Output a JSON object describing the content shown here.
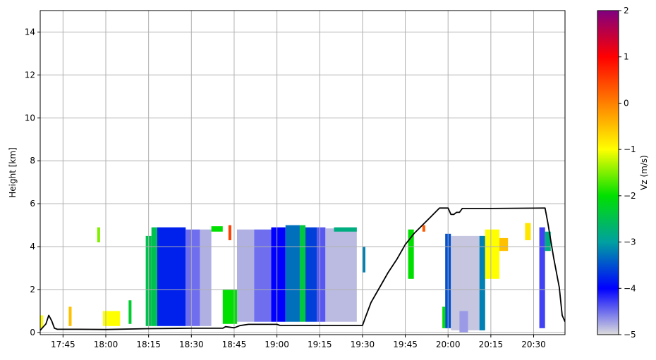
{
  "chart_data": {
    "type": "heatmap",
    "title": "",
    "xlabel": "",
    "ylabel": "Height [km]",
    "ylim": [
      -0.1,
      15
    ],
    "xlim": [
      "17:37",
      "20:41"
    ],
    "grid": true,
    "x_ticks": [
      "17:45",
      "18:00",
      "18:15",
      "18:30",
      "18:45",
      "19:00",
      "19:15",
      "19:30",
      "19:45",
      "20:00",
      "20:15",
      "20:30"
    ],
    "y_ticks": [
      0,
      2,
      4,
      6,
      8,
      10,
      12,
      14
    ],
    "colorbar": {
      "label": "Vz (m/s)",
      "range": [
        -5,
        2
      ],
      "ticks": [
        -5,
        -4,
        -3,
        -2,
        -1,
        0,
        1,
        2
      ],
      "colors": [
        "#dcdcdc",
        "#0000ff",
        "#00a0a0",
        "#00e000",
        "#ffff00",
        "#ff8000",
        "#ff0000",
        "#800080"
      ]
    },
    "line_series": {
      "color": "#000000",
      "points": [
        [
          "17:37",
          0.1
        ],
        [
          "17:38",
          0.25
        ],
        [
          "17:39",
          0.4
        ],
        [
          "17:40",
          0.8
        ],
        [
          "17:41",
          0.55
        ],
        [
          "17:42",
          0.2
        ],
        [
          "17:43",
          0.15
        ],
        [
          "17:50",
          0.15
        ],
        [
          "18:00",
          0.14
        ],
        [
          "18:15",
          0.18
        ],
        [
          "18:30",
          0.2
        ],
        [
          "18:41",
          0.2
        ],
        [
          "18:42",
          0.27
        ],
        [
          "18:45",
          0.22
        ],
        [
          "18:47",
          0.32
        ],
        [
          "18:50",
          0.38
        ],
        [
          "19:00",
          0.38
        ],
        [
          "19:01",
          0.33
        ],
        [
          "19:15",
          0.33
        ],
        [
          "19:30",
          0.33
        ],
        [
          "19:31",
          0.7
        ],
        [
          "19:33",
          1.4
        ],
        [
          "19:36",
          2.1
        ],
        [
          "19:39",
          2.8
        ],
        [
          "19:42",
          3.4
        ],
        [
          "19:45",
          4.1
        ],
        [
          "19:48",
          4.6
        ],
        [
          "19:51",
          5.0
        ],
        [
          "19:54",
          5.4
        ],
        [
          "19:57",
          5.8
        ],
        [
          "20:00",
          5.8
        ],
        [
          "20:01",
          5.5
        ],
        [
          "20:02",
          5.5
        ],
        [
          "20:03",
          5.6
        ],
        [
          "20:04",
          5.6
        ],
        [
          "20:05",
          5.78
        ],
        [
          "20:15",
          5.78
        ],
        [
          "20:34",
          5.8
        ],
        [
          "20:35",
          5.1
        ],
        [
          "20:37",
          3.5
        ],
        [
          "20:39",
          2.1
        ],
        [
          "20:40",
          0.8
        ],
        [
          "20:41",
          0.5
        ]
      ]
    },
    "field_blocks": [
      {
        "t": [
          "17:37",
          "17:38"
        ],
        "bottom": 0.2,
        "top": 0.8,
        "v": -1
      },
      {
        "t": [
          "17:47",
          "17:48"
        ],
        "bottom": 0.3,
        "top": 1.2,
        "v": -0.5
      },
      {
        "t": [
          "17:57",
          "17:58"
        ],
        "bottom": 4.2,
        "top": 4.9,
        "v": -1.5
      },
      {
        "t": [
          "17:59",
          "18:05"
        ],
        "bottom": 0.3,
        "top": 1.0,
        "v": -1
      },
      {
        "t": [
          "18:08",
          "18:09"
        ],
        "bottom": 0.4,
        "top": 1.5,
        "v": -2.3
      },
      {
        "t": [
          "18:14",
          "18:16"
        ],
        "bottom": 0.3,
        "top": 4.5,
        "v": -2.5
      },
      {
        "t": [
          "18:16",
          "18:18"
        ],
        "bottom": 0.3,
        "top": 4.9,
        "v": -2.5
      },
      {
        "t": [
          "18:18",
          "18:28"
        ],
        "bottom": 0.3,
        "top": 4.9,
        "v": -3.8
      },
      {
        "t": [
          "18:28",
          "18:33"
        ],
        "bottom": 0.3,
        "top": 4.8,
        "v": -4.5
      },
      {
        "t": [
          "18:33",
          "18:37"
        ],
        "bottom": 0.3,
        "top": 4.8,
        "v": -4.8
      },
      {
        "t": [
          "18:37",
          "18:41"
        ],
        "bottom": 4.7,
        "top": 4.95,
        "v": -2.0
      },
      {
        "t": [
          "18:41",
          "18:46"
        ],
        "bottom": 0.4,
        "top": 2.0,
        "v": -2.0
      },
      {
        "t": [
          "18:43",
          "18:44"
        ],
        "bottom": 4.3,
        "top": 5.0,
        "v": 0.5
      },
      {
        "t": [
          "18:46",
          "18:52"
        ],
        "bottom": 0.5,
        "top": 4.8,
        "v": -4.8
      },
      {
        "t": [
          "18:52",
          "18:58"
        ],
        "bottom": 0.5,
        "top": 4.8,
        "v": -4.5
      },
      {
        "t": [
          "18:58",
          "19:03"
        ],
        "bottom": 0.5,
        "top": 4.9,
        "v": -4.0
      },
      {
        "t": [
          "19:03",
          "19:08"
        ],
        "bottom": 0.5,
        "top": 5.0,
        "v": -3.3
      },
      {
        "t": [
          "19:08",
          "19:10"
        ],
        "bottom": 0.5,
        "top": 5.0,
        "v": -2.4
      },
      {
        "t": [
          "19:10",
          "19:14"
        ],
        "bottom": 0.5,
        "top": 4.9,
        "v": -3.6
      },
      {
        "t": [
          "19:14",
          "19:17"
        ],
        "bottom": 0.5,
        "top": 4.9,
        "v": -4.4
      },
      {
        "t": [
          "19:17",
          "19:28"
        ],
        "bottom": 0.5,
        "top": 4.85,
        "v": -4.85
      },
      {
        "t": [
          "19:20",
          "19:28"
        ],
        "bottom": 4.7,
        "top": 4.9,
        "v": -2.8
      },
      {
        "t": [
          "19:30",
          "19:31"
        ],
        "bottom": 2.8,
        "top": 4.0,
        "v": -3.2
      },
      {
        "t": [
          "19:46",
          "19:48"
        ],
        "bottom": 2.5,
        "top": 4.8,
        "v": -2.0
      },
      {
        "t": [
          "19:51",
          "19:52"
        ],
        "bottom": 4.7,
        "top": 5.0,
        "v": 0.3
      },
      {
        "t": [
          "19:58",
          "19:59"
        ],
        "bottom": 0.2,
        "top": 1.2,
        "v": -2.0
      },
      {
        "t": [
          "19:59",
          "20:01"
        ],
        "bottom": 0.2,
        "top": 4.6,
        "v": -3.5
      },
      {
        "t": [
          "20:01",
          "20:11"
        ],
        "bottom": 0.1,
        "top": 4.5,
        "v": -4.9
      },
      {
        "t": [
          "20:04",
          "20:07"
        ],
        "bottom": 0.0,
        "top": 1.0,
        "v": -4.7
      },
      {
        "t": [
          "20:11",
          "20:13"
        ],
        "bottom": 0.1,
        "top": 4.5,
        "v": -3.2
      },
      {
        "t": [
          "20:13",
          "20:18"
        ],
        "bottom": 2.5,
        "top": 4.8,
        "v": -1.0
      },
      {
        "t": [
          "20:18",
          "20:21"
        ],
        "bottom": 3.8,
        "top": 4.4,
        "v": -0.5
      },
      {
        "t": [
          "20:27",
          "20:29"
        ],
        "bottom": 4.3,
        "top": 5.1,
        "v": -0.8
      },
      {
        "t": [
          "20:32",
          "20:34"
        ],
        "bottom": 0.2,
        "top": 4.9,
        "v": -4.3
      },
      {
        "t": [
          "20:34",
          "20:36"
        ],
        "bottom": 3.8,
        "top": 4.7,
        "v": -2.8
      }
    ]
  }
}
